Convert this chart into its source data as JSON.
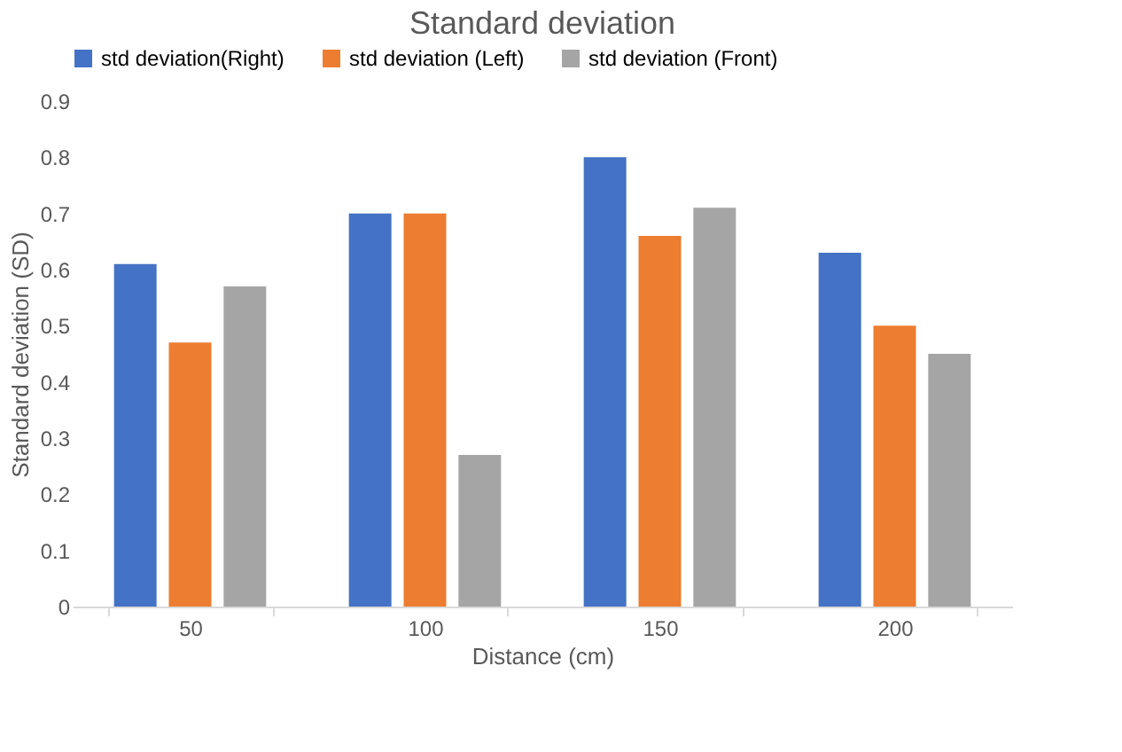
{
  "chart_data": {
    "type": "bar",
    "title": "Standard deviation",
    "xlabel": "Distance (cm)",
    "ylabel": "Standard deviation (SD)",
    "categories": [
      "50",
      "100",
      "150",
      "200"
    ],
    "series": [
      {
        "name": "std deviation(Right)",
        "color": "#4472c4",
        "values": [
          0.61,
          0.7,
          0.8,
          0.63
        ]
      },
      {
        "name": "std deviation (Left)",
        "color": "#ed7d31",
        "values": [
          0.47,
          0.7,
          0.66,
          0.5
        ]
      },
      {
        "name": "std deviation (Front)",
        "color": "#a5a5a5",
        "values": [
          0.57,
          0.27,
          0.71,
          0.45
        ]
      }
    ],
    "ylim": [
      0,
      0.9
    ],
    "yticks": [
      0,
      0.1,
      0.2,
      0.3,
      0.4,
      0.5,
      0.6,
      0.7,
      0.8,
      0.9
    ],
    "grid": false,
    "legend": "top"
  }
}
